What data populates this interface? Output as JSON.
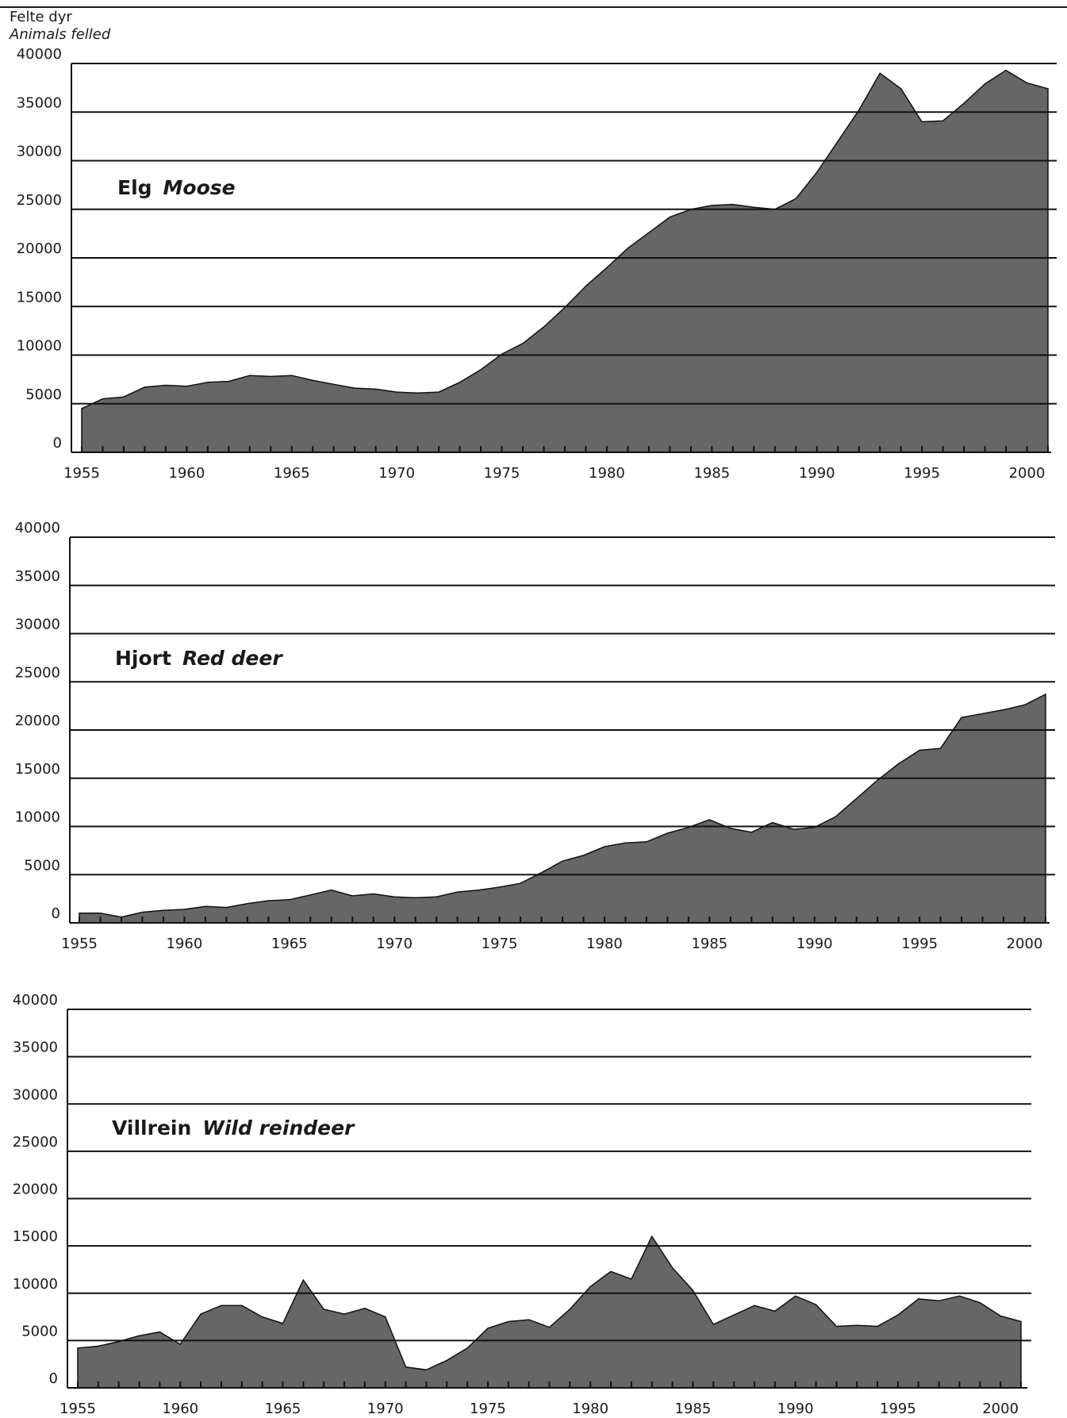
{
  "y_axis_title": {
    "norwegian": "Felte dyr",
    "english": "Animals felled"
  },
  "style": {
    "area_fill": "#666666",
    "line_color": "#111111"
  },
  "chart_data": [
    {
      "type": "area",
      "title": "Elg",
      "subtitle": "Moose",
      "xlabel": "",
      "ylabel": "Felte dyr / Animals felled",
      "ylim": [
        0,
        40000
      ],
      "xlim": [
        1955,
        2001
      ],
      "grid": true,
      "y_ticks": [
        0,
        5000,
        10000,
        15000,
        20000,
        25000,
        30000,
        35000,
        40000
      ],
      "x_ticks": [
        1955,
        1960,
        1965,
        1970,
        1975,
        1980,
        1985,
        1990,
        1995,
        2000
      ],
      "x": [
        1955,
        1956,
        1957,
        1958,
        1959,
        1960,
        1961,
        1962,
        1963,
        1964,
        1965,
        1966,
        1967,
        1968,
        1969,
        1970,
        1971,
        1972,
        1973,
        1974,
        1975,
        1976,
        1977,
        1978,
        1979,
        1980,
        1981,
        1982,
        1983,
        1984,
        1985,
        1986,
        1987,
        1988,
        1989,
        1990,
        1991,
        1992,
        1993,
        1994,
        1995,
        1996,
        1997,
        1998,
        1999,
        2000,
        2001
      ],
      "series": [
        {
          "values": [
            4500,
            5500,
            5700,
            6700,
            6900,
            6800,
            7200,
            7300,
            7900,
            7800,
            7900,
            7400,
            7000,
            6600,
            6500,
            6200,
            6100,
            6200,
            7200,
            8500,
            10100,
            11200,
            12900,
            14900,
            17100,
            19000,
            21000,
            22600,
            24200,
            25000,
            25400,
            25500,
            25200,
            25000,
            26100,
            28800,
            32000,
            35200,
            39000,
            37400,
            34000,
            34100,
            35900,
            37900,
            39300,
            38000,
            37400
          ]
        }
      ]
    },
    {
      "type": "area",
      "title": "Hjort",
      "subtitle": "Red deer",
      "xlabel": "",
      "ylabel": "Felte dyr / Animals felled",
      "ylim": [
        0,
        40000
      ],
      "xlim": [
        1955,
        2001
      ],
      "grid": true,
      "y_ticks": [
        0,
        5000,
        10000,
        15000,
        20000,
        25000,
        30000,
        35000,
        40000
      ],
      "x_ticks": [
        1955,
        1960,
        1965,
        1970,
        1975,
        1980,
        1985,
        1990,
        1995,
        2000
      ],
      "x": [
        1955,
        1956,
        1957,
        1958,
        1959,
        1960,
        1961,
        1962,
        1963,
        1964,
        1965,
        1966,
        1967,
        1968,
        1969,
        1970,
        1971,
        1972,
        1973,
        1974,
        1975,
        1976,
        1977,
        1978,
        1979,
        1980,
        1981,
        1982,
        1983,
        1984,
        1985,
        1986,
        1987,
        1988,
        1989,
        1990,
        1991,
        1992,
        1993,
        1994,
        1995,
        1996,
        1997,
        1998,
        1999,
        2000,
        2001
      ],
      "series": [
        {
          "values": [
            1000,
            1000,
            600,
            1100,
            1300,
            1400,
            1700,
            1600,
            2000,
            2300,
            2400,
            2900,
            3400,
            2800,
            3000,
            2700,
            2600,
            2700,
            3200,
            3400,
            3700,
            4100,
            5200,
            6400,
            7000,
            7900,
            8300,
            8400,
            9300,
            9900,
            10700,
            9800,
            9400,
            10400,
            9700,
            9900,
            11000,
            12900,
            14800,
            16500,
            17900,
            18100,
            21300,
            21700,
            22100,
            22600,
            23700
          ]
        }
      ]
    },
    {
      "type": "area",
      "title": "Villrein",
      "subtitle": "Wild reindeer",
      "xlabel": "",
      "ylabel": "Felte dyr / Animals felled",
      "ylim": [
        0,
        40000
      ],
      "xlim": [
        1955,
        2001
      ],
      "grid": true,
      "y_ticks": [
        0,
        5000,
        10000,
        15000,
        20000,
        25000,
        30000,
        35000,
        40000
      ],
      "x_ticks": [
        1955,
        1960,
        1965,
        1970,
        1975,
        1980,
        1985,
        1990,
        1995,
        2000
      ],
      "x": [
        1955,
        1956,
        1957,
        1958,
        1959,
        1960,
        1961,
        1962,
        1963,
        1964,
        1965,
        1966,
        1967,
        1968,
        1969,
        1970,
        1971,
        1972,
        1973,
        1974,
        1975,
        1976,
        1977,
        1978,
        1979,
        1980,
        1981,
        1982,
        1983,
        1984,
        1985,
        1986,
        1987,
        1988,
        1989,
        1990,
        1991,
        1992,
        1993,
        1994,
        1995,
        1996,
        1997,
        1998,
        1999,
        2000,
        2001
      ],
      "series": [
        {
          "values": [
            4200,
            4400,
            4900,
            5500,
            5900,
            4600,
            7800,
            8700,
            8700,
            7500,
            6800,
            11400,
            8300,
            7800,
            8400,
            7500,
            2200,
            1900,
            2900,
            4200,
            6300,
            7000,
            7200,
            6400,
            8300,
            10700,
            12300,
            11500,
            16000,
            12700,
            10300,
            6700,
            7700,
            8700,
            8100,
            9700,
            8800,
            6500,
            6600,
            6500,
            7700,
            9400,
            9200,
            9700,
            9000,
            7600,
            7000
          ]
        }
      ]
    }
  ]
}
